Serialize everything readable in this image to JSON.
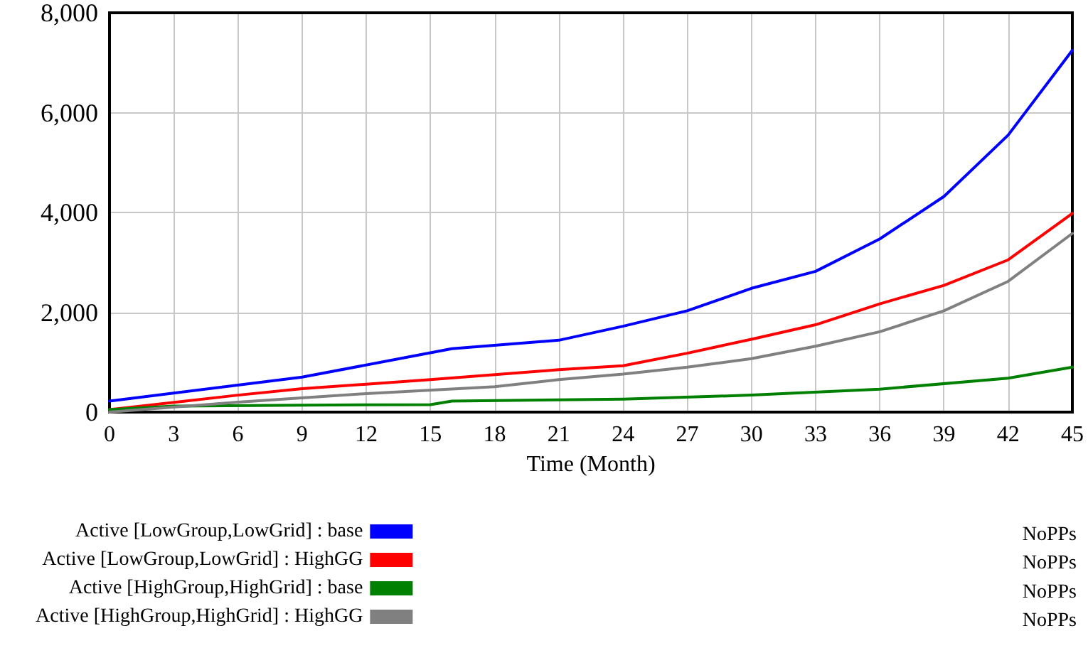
{
  "chart_data": {
    "type": "line",
    "xlabel": "Time (Month)",
    "xlim": [
      0,
      45
    ],
    "xticks": [
      0,
      3,
      6,
      9,
      12,
      15,
      18,
      21,
      24,
      27,
      30,
      33,
      36,
      39,
      42,
      45
    ],
    "ylim": [
      0,
      8000
    ],
    "yticks": [
      0,
      {
        "value": 2000,
        "label": "2,000"
      },
      {
        "value": 4000,
        "label": "4,000"
      },
      {
        "value": 6000,
        "label": "6,000"
      },
      {
        "value": 8000,
        "label": "8,000"
      }
    ],
    "grid": true,
    "legend": "bottom",
    "marker": "none",
    "line_style": "solid",
    "annotations": [
      "NoPPs",
      "NoPPs",
      "NoPPs",
      "NoPPs"
    ],
    "series": [
      {
        "name": "Active [LowGroup,LowGrid] : base",
        "color": "#0000ff",
        "x": [
          0,
          9,
          16,
          21,
          24,
          27,
          30,
          33,
          36,
          39,
          42,
          45
        ],
        "values": [
          220,
          700,
          1270,
          1440,
          1720,
          2030,
          2480,
          2820,
          3470,
          4320,
          5550,
          7250
        ]
      },
      {
        "name": "Active [LowGroup,LowGrid] : HighGG",
        "color": "#ff0000",
        "x": [
          0,
          6,
          9,
          15,
          21,
          24,
          27,
          30,
          33,
          36,
          39,
          42,
          45
        ],
        "values": [
          50,
          340,
          470,
          650,
          850,
          930,
          1180,
          1460,
          1750,
          2170,
          2540,
          3050,
          3980
        ]
      },
      {
        "name": "Active [HighGroup,HighGrid] : base",
        "color": "#008000",
        "x": [
          0,
          3,
          9,
          15,
          16,
          24,
          30,
          36,
          42,
          45
        ],
        "values": [
          50,
          120,
          140,
          150,
          220,
          260,
          340,
          460,
          680,
          900
        ]
      },
      {
        "name": "Active [HighGroup,HighGrid] : HighGG",
        "color": "#808080",
        "x": [
          0,
          6,
          12,
          18,
          21,
          24,
          27,
          30,
          33,
          36,
          39,
          42,
          45
        ],
        "values": [
          0,
          200,
          370,
          510,
          650,
          760,
          900,
          1070,
          1320,
          1610,
          2030,
          2620,
          3580
        ]
      }
    ]
  }
}
